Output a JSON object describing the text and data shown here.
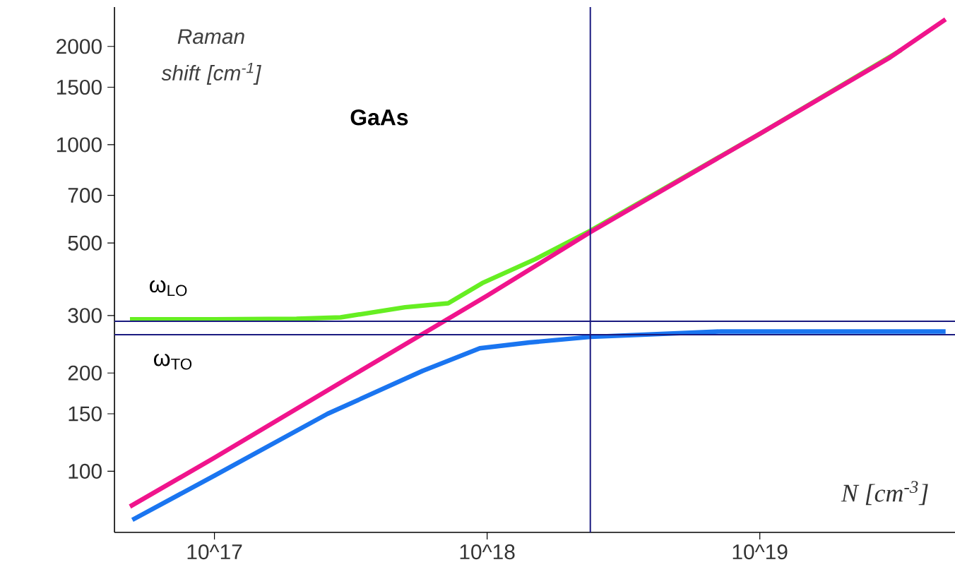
{
  "chart_data": {
    "type": "line",
    "title": "GaAs",
    "ylabel": "Raman shift [cm$^{-1}$]",
    "xlabel": "N [cm$^{-3}$]",
    "log": "xy",
    "xlim": [
      4.3e+16,
      5.2e+19
    ],
    "ylim": [
      65,
      2640
    ],
    "xticks": [
      {
        "value": 1e+17,
        "label": "10^17"
      },
      {
        "value": 1e+18,
        "label": "10^18"
      },
      {
        "value": 1e+19,
        "label": "10^19"
      }
    ],
    "yticks": [
      100,
      150,
      200,
      300,
      500,
      700,
      1000,
      1500,
      2000
    ],
    "grid": false,
    "marker": "none",
    "line_style": "solid",
    "series": [
      {
        "color": "#66ee22",
        "x": [
          4.9e+16,
          1e+17,
          2e+17,
          2.9e+17,
          5e+17,
          7.2e+17,
          9.6e+17,
          1.5e+18,
          2.39e+18,
          1e+19,
          3.3e+19
        ],
        "values": [
          292,
          292,
          293,
          296,
          318,
          327,
          377,
          446,
          545,
          1080,
          1950
        ]
      },
      {
        "color": "#f0148c",
        "x": [
          4.9e+16,
          1e+17,
          3e+17,
          1e+18,
          2.39e+18,
          1e+19,
          3e+19,
          4.8e+19
        ],
        "values": [
          78,
          110,
          190,
          345,
          540,
          1080,
          1850,
          2420
        ]
      },
      {
        "color": "#1a75f0",
        "x": [
          5e+16,
          1e+17,
          2.6e+17,
          5.8e+17,
          9.4e+17,
          1.43e+18,
          2.39e+18,
          7.2e+18,
          4.8e+19
        ],
        "values": [
          71,
          97,
          150,
          203,
          238,
          248,
          258,
          268,
          268
        ]
      }
    ],
    "ref_lines": [
      {
        "axis": "y",
        "value": 288,
        "label": "ω$_{LO}$",
        "color": "#1a1a80"
      },
      {
        "axis": "y",
        "value": 262,
        "label": "ω$_{TO}$",
        "color": "#1a1a80"
      },
      {
        "axis": "x",
        "value": 2.39e+18,
        "color": "#1a1a80"
      }
    ]
  }
}
